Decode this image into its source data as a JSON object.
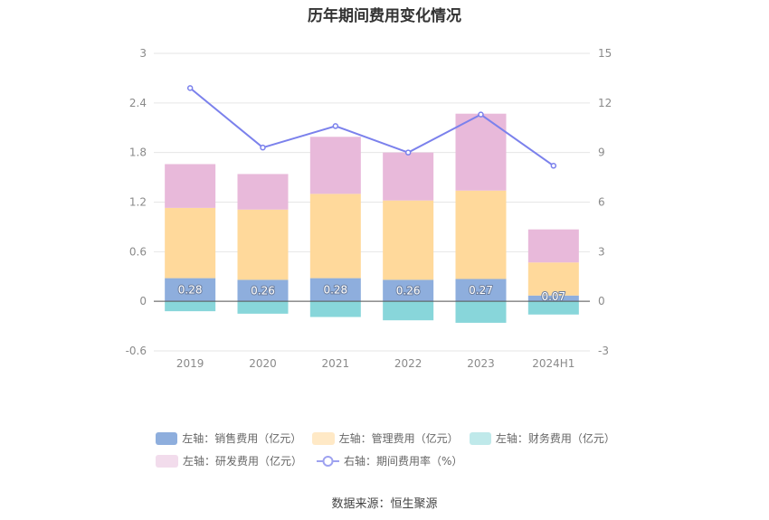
{
  "title": "历年期间费用变化情况",
  "source": "数据来源：恒生聚源",
  "chart_data": {
    "type": "bar",
    "stacked": true,
    "categories": [
      "2019",
      "2020",
      "2021",
      "2022",
      "2023",
      "2024H1"
    ],
    "left_axis": {
      "min": -0.6,
      "max": 3,
      "ticks": [
        "-0.6",
        "0",
        "0.6",
        "1.2",
        "1.8",
        "2.4",
        "3"
      ]
    },
    "right_axis": {
      "min": -3,
      "max": 15,
      "ticks": [
        "-3",
        "0",
        "3",
        "6",
        "9",
        "12",
        "15"
      ]
    },
    "series": [
      {
        "name": "左轴：销售费用（亿元）",
        "type": "bar",
        "axis": "left",
        "color": "#8eaedd",
        "values": [
          0.28,
          0.26,
          0.28,
          0.26,
          0.27,
          0.07
        ],
        "labels": [
          "0.28",
          "0.26",
          "0.28",
          "0.26",
          "0.27",
          "0.07"
        ]
      },
      {
        "name": "左轴：管理费用（亿元）",
        "type": "bar",
        "axis": "left",
        "color": "#ffd99b",
        "values": [
          0.85,
          0.85,
          1.02,
          0.96,
          1.07,
          0.4
        ]
      },
      {
        "name": "左轴：财务费用（亿元）",
        "type": "bar",
        "axis": "left",
        "color": "#88d6da",
        "values": [
          -0.12,
          -0.15,
          -0.19,
          -0.23,
          -0.26,
          -0.16
        ]
      },
      {
        "name": "左轴：研发费用（亿元）",
        "type": "bar",
        "axis": "left",
        "color": "#e8b9da",
        "values": [
          0.53,
          0.43,
          0.69,
          0.58,
          0.93,
          0.4
        ]
      },
      {
        "name": "右轴：期间费用率（%）",
        "type": "line",
        "axis": "right",
        "color": "#7b81ec",
        "values": [
          12.9,
          9.3,
          10.6,
          9.0,
          11.3,
          8.2
        ]
      }
    ],
    "legend_placement": "bottom",
    "grid": true
  }
}
